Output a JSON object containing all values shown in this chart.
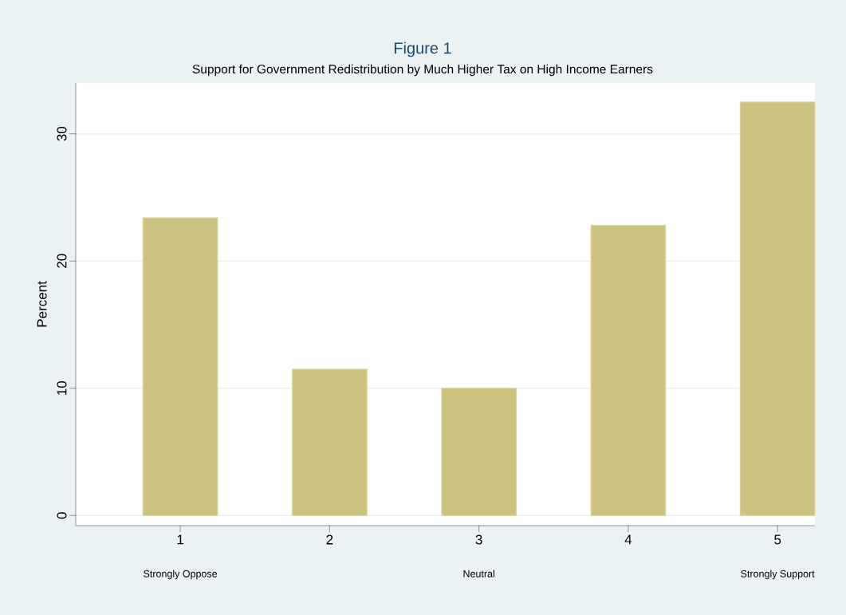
{
  "chart_data": {
    "type": "bar",
    "title": "Figure 1",
    "subtitle": "Support for Government Redistribution by Much Higher Tax on High Income Earners",
    "ylabel": "Percent",
    "categories": [
      "1",
      "2",
      "3",
      "4",
      "5"
    ],
    "values": [
      23.4,
      11.5,
      10.0,
      22.8,
      32.5
    ],
    "color": "#cbc37f",
    "ylim": [
      -0.8,
      34
    ],
    "yticks": [
      0,
      10,
      20,
      30
    ],
    "grid": "y",
    "annotations": [
      "Strongly Oppose",
      "Neutral",
      "Strongly Support"
    ]
  }
}
